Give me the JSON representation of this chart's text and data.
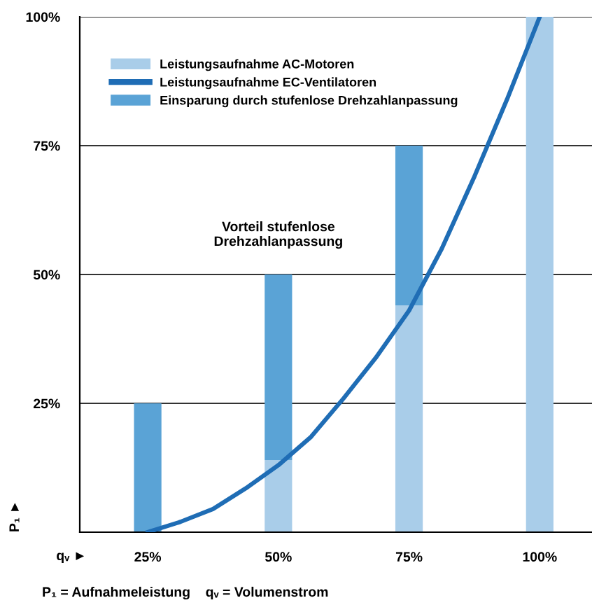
{
  "chart_data": {
    "type": "bar",
    "stacked": true,
    "x": [
      25,
      50,
      75,
      100
    ],
    "xlim": [
      12,
      110
    ],
    "xticks": [
      {
        "value": 25,
        "label": "25%"
      },
      {
        "value": 50,
        "label": "50%"
      },
      {
        "value": 75,
        "label": "75%"
      },
      {
        "value": 100,
        "label": "100%"
      }
    ],
    "series": [
      {
        "name": "Leistungsaufnahme AC-Motoren",
        "color": "#a9cde9",
        "values": [
          0,
          14,
          44,
          100
        ]
      },
      {
        "name": "Einsparung durch stufenlose Drehzahlanpassung",
        "color": "#5aa3d6",
        "values": [
          25,
          36,
          31,
          0
        ]
      },
      {
        "name": "Leistungsaufnahme EC-Ventilatoren",
        "type": "line",
        "color": "#1f6db5",
        "x": [
          25,
          31.25,
          37.5,
          43.75,
          50,
          56.25,
          62.5,
          68.75,
          75,
          81.25,
          87.5,
          93.75,
          100
        ],
        "values": [
          0,
          2,
          4.5,
          8.5,
          13,
          18.5,
          26,
          34,
          43,
          55,
          69,
          84,
          100
        ]
      }
    ],
    "ylim": [
      0,
      100
    ],
    "yticks": [
      {
        "value": 25,
        "label": "25%"
      },
      {
        "value": 50,
        "label": "50%"
      },
      {
        "value": 75,
        "label": "75%"
      },
      {
        "value": 100,
        "label": "100%"
      }
    ],
    "xlabel": "qᵥ ►",
    "ylabel": "P₁ ►",
    "grid": "y",
    "legend": "top left",
    "annotations": [
      "Vorteil stufenlose\nDrehzahlanpassung",
      "P₁ = Aufnahmeleistung    qᵥ = Volumenstrom"
    ]
  }
}
